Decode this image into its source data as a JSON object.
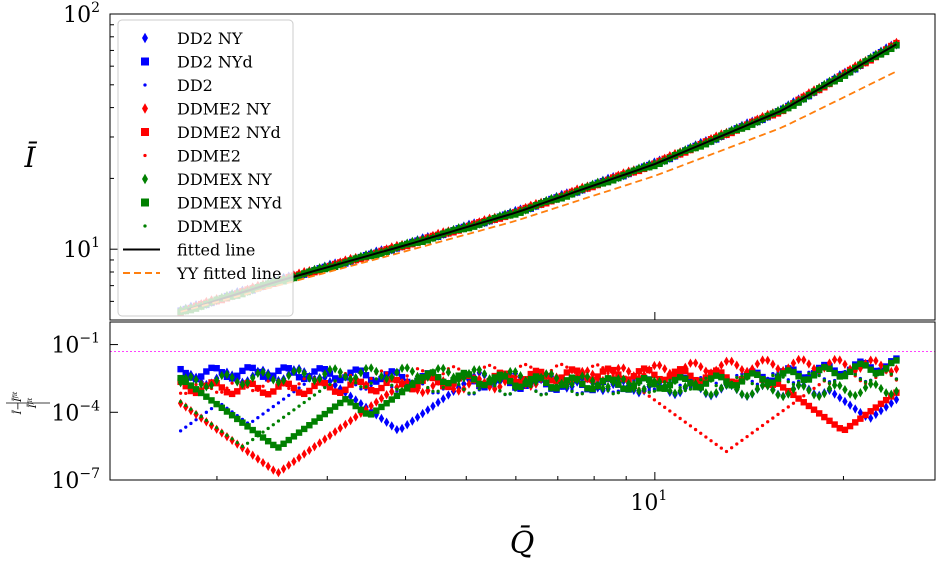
{
  "chart_data": [
    {
      "panel": "top",
      "type": "scatter",
      "xscale": "log",
      "yscale": "log",
      "xlim": [
        1.35,
        28
      ],
      "ylim": [
        5,
        100
      ],
      "xlabel": "Q̄",
      "ylabel": "Ī",
      "y_ticks": [
        {
          "value": 10,
          "base": "10",
          "exp": "1"
        },
        {
          "value": 100,
          "base": "10",
          "exp": "2"
        }
      ],
      "series": [
        {
          "name": "DD2 NY",
          "marker": "diamond",
          "color": "#0000ff",
          "x_range": [
            1.75,
            24.3
          ],
          "y_range": [
            5.42,
            74.4
          ]
        },
        {
          "name": "DD2 NYd",
          "marker": "square",
          "color": "#0000ff",
          "x_range": [
            1.75,
            24.3
          ],
          "y_range": [
            5.42,
            74.4
          ]
        },
        {
          "name": "DD2",
          "marker": "dot",
          "color": "#0000ff",
          "x_range": [
            1.75,
            24.3
          ],
          "y_range": [
            5.42,
            74.4
          ]
        },
        {
          "name": "DDME2 NY",
          "marker": "diamond",
          "color": "#ff0000",
          "x_range": [
            1.75,
            24.3
          ],
          "y_range": [
            5.42,
            74.4
          ]
        },
        {
          "name": "DDME2 NYd",
          "marker": "square",
          "color": "#ff0000",
          "x_range": [
            1.75,
            24.3
          ],
          "y_range": [
            5.42,
            74.4
          ]
        },
        {
          "name": "DDME2",
          "marker": "dot",
          "color": "#ff0000",
          "x_range": [
            1.75,
            24.3
          ],
          "y_range": [
            5.42,
            74.4
          ]
        },
        {
          "name": "DDMEX NY",
          "marker": "diamond",
          "color": "#008000",
          "x_range": [
            1.75,
            24.3
          ],
          "y_range": [
            5.42,
            74.4
          ]
        },
        {
          "name": "DDMEX NYd",
          "marker": "square",
          "color": "#008000",
          "x_range": [
            1.75,
            24.3
          ],
          "y_range": [
            5.42,
            74.4
          ]
        },
        {
          "name": "DDMEX",
          "marker": "dot",
          "color": "#008000",
          "x_range": [
            1.75,
            24.3
          ],
          "y_range": [
            5.42,
            74.4
          ]
        },
        {
          "name": "fitted line",
          "marker": "line",
          "color": "#000000",
          "x": [
            1.75,
            2.5,
            4,
            6,
            10,
            16,
            24.3
          ],
          "y": [
            5.42,
            7.3,
            10.4,
            14.3,
            23.0,
            39.0,
            74.4
          ]
        },
        {
          "name": "YY fitted line",
          "marker": "dashed",
          "color": "#ff7f0e",
          "x": [
            1.75,
            2.5,
            4,
            6,
            10,
            16,
            24.3
          ],
          "y": [
            5.42,
            7.0,
            9.8,
            13.2,
            20.5,
            33.0,
            57.0
          ]
        }
      ],
      "legend": "upper-left",
      "grid": false
    },
    {
      "panel": "bottom",
      "type": "scatter",
      "xscale": "log",
      "yscale": "log",
      "xlim": [
        1.35,
        28
      ],
      "ylim": [
        1e-07,
        1
      ],
      "xlabel": "Q̄",
      "ylabel": "Ī−Ī^fit / Ī^fit",
      "y_ticks": [
        {
          "value": 0.1,
          "base": "10",
          "exp": "−1"
        },
        {
          "value": 0.0001,
          "base": "10",
          "exp": "−4"
        },
        {
          "value": 1e-07,
          "base": "10",
          "exp": "−7"
        }
      ],
      "x_ticks": [
        {
          "value": 10,
          "base": "10",
          "exp": "1"
        }
      ],
      "reference_line": {
        "y": 0.05,
        "color": "#ff00ff",
        "style": "dashed"
      },
      "series_envelope": "relative deviation of each EOS family from the fitted line, mostly between 1e-4 and 1e-2, with dips down to ~1e-6",
      "dips": [
        {
          "series": "DD2",
          "x": 1.75,
          "y": 1.5e-05
        },
        {
          "series": "DD2",
          "x": 2.25,
          "y": 3e-05
        },
        {
          "series": "DDMEX",
          "x": 2.2,
          "y": 3e-06
        },
        {
          "series": "DDME2 NY",
          "x": 2.5,
          "y": 2e-07
        },
        {
          "series": "DDMEX NYd",
          "x": 2.5,
          "y": 2.6e-06
        },
        {
          "series": "DD2 NY",
          "x": 3.9,
          "y": 1.5e-05
        },
        {
          "series": "DDMEX NYd",
          "x": 3.5,
          "y": 7e-05
        },
        {
          "series": "DDME2",
          "x": 13,
          "y": 1.8e-06
        },
        {
          "series": "DDME2 NYd",
          "x": 20,
          "y": 1.5e-05
        },
        {
          "series": "DD2 NY",
          "x": 22,
          "y": 5e-05
        }
      ],
      "grid": false
    }
  ]
}
